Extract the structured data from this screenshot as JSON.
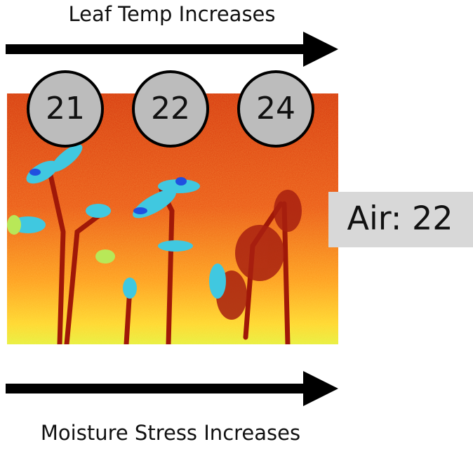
{
  "header": {
    "title": "Leaf Temp Increases"
  },
  "footer": {
    "title": "Moisture Stress Increases"
  },
  "nodes": [
    {
      "label": "21"
    },
    {
      "label": "22"
    },
    {
      "label": "24"
    }
  ],
  "air": {
    "label": "Air: 22"
  }
}
